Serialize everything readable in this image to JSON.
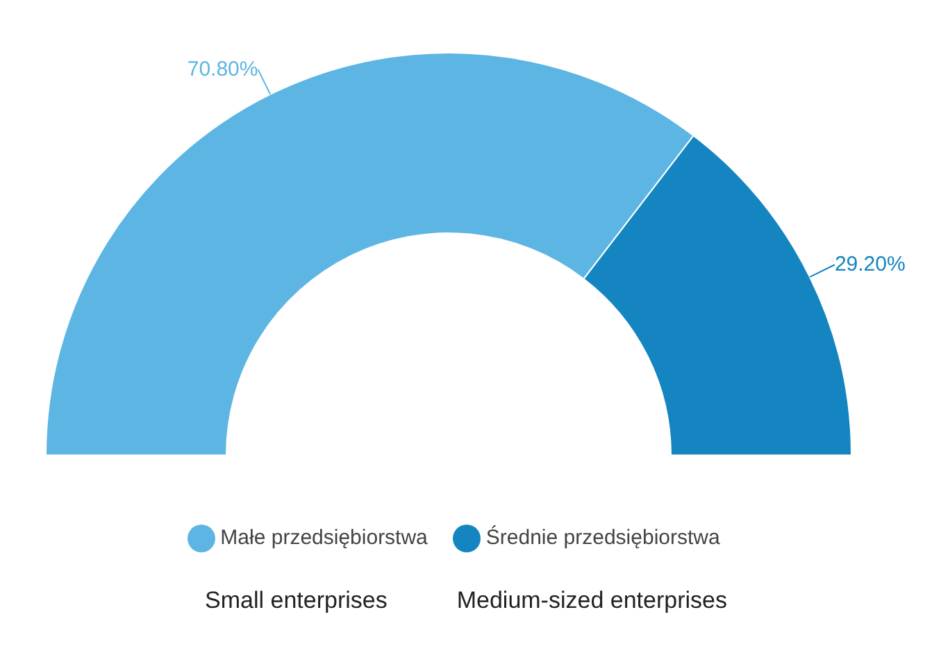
{
  "chart_data": {
    "type": "donut",
    "categories": [
      "Małe przedsiębiorstwa",
      "Średnie przedsiębiorstwa"
    ],
    "values": [
      70.8,
      29.2
    ],
    "colors": [
      "#5db5e3",
      "#1485c0"
    ],
    "value_labels": [
      "70.80%",
      "29.20%"
    ],
    "legend": "bottom",
    "annotations": [
      "Small enterprises",
      "Medium-sized enterprises"
    ]
  }
}
